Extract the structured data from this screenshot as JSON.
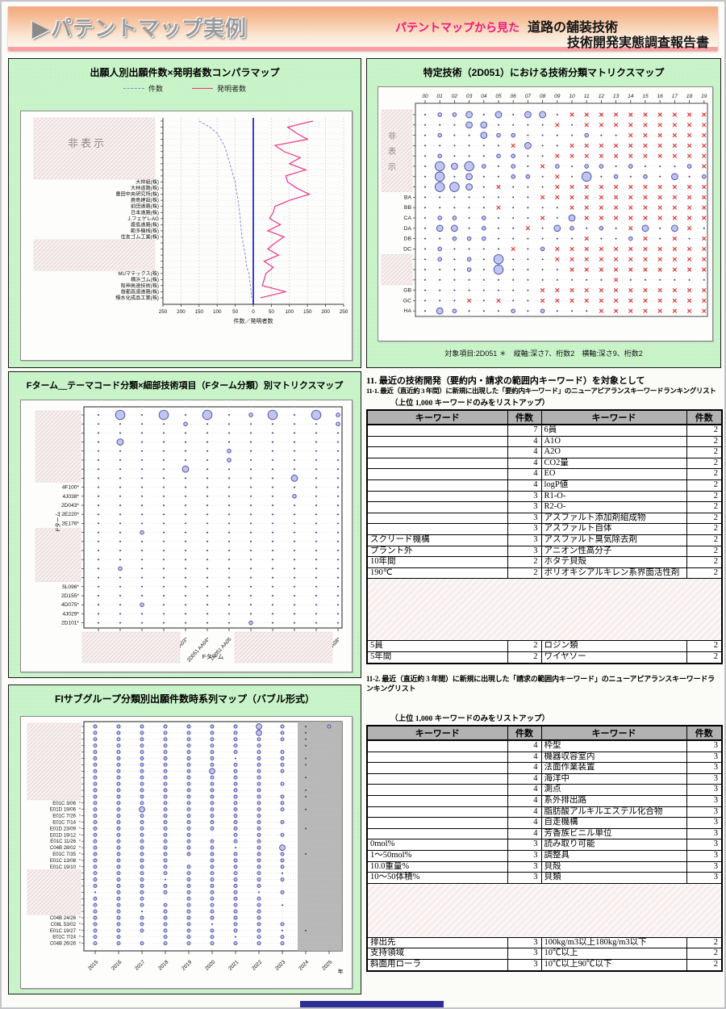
{
  "page": {
    "header": {
      "title": "パテントマップ実例",
      "subtitle_pink": "パテントマップから見た",
      "subtitle_main": "道路の舗装技術",
      "subtitle_sub": "技術開発実態調査報告書"
    },
    "section11": {
      "h1": "11. 最近の技術開発（要約内・請求の範囲内キーワード）を対象として",
      "h11_1": "11-1. 最近（直近約 3 年間）に新規に出現した「要約内キーワード」のニューアピアランスキーワードランキングリスト",
      "listup1": "（上位 1,000 キーワードのみをリストアップ）",
      "h11_2": "11-2. 最近（直近約 3 年間）に新規に出現した「請求の範囲内キーワード」のニューアピアランスキーワードランキングリスト",
      "listup2": "（上位 1,000 キーワードのみをリストアップ）"
    },
    "tables": {
      "headers": [
        "キーワード",
        "件数",
        "キーワード",
        "件数"
      ],
      "table1": {
        "rows": [
          [
            "",
            7,
            "6員",
            2,
            true
          ],
          [
            "",
            4,
            "A1O",
            2,
            true
          ],
          [
            "",
            4,
            "A2O",
            2,
            true
          ],
          [
            "",
            4,
            "CO2量",
            2,
            true
          ],
          [
            "",
            4,
            "EO",
            2,
            true
          ],
          [
            "",
            4,
            "logP値",
            2,
            true
          ],
          [
            "",
            3,
            "R1-O-",
            2,
            true
          ],
          [
            "",
            3,
            "R2-O-",
            2,
            true
          ],
          [
            "",
            3,
            "アスファルト添加剤組成物",
            2,
            true
          ],
          [
            "",
            3,
            "アスファルト自体",
            2,
            true
          ],
          [
            "スクリード機構",
            3,
            "アスファルト臭気除去剤",
            2,
            false
          ],
          [
            "プラント外",
            3,
            "アニオン性高分子",
            2,
            false
          ],
          [
            "10年間",
            2,
            "ホタテ貝殻",
            2,
            false
          ],
          [
            "190℃",
            2,
            "ポリオキシアルキレン系界面活性剤",
            2,
            false
          ],
          {
            "gap": 76
          },
          [
            "5員",
            2,
            "ロジン類",
            2,
            false
          ],
          [
            "5年間",
            2,
            "ワイヤソー",
            2,
            false
          ]
        ]
      },
      "table2": {
        "rows": [
          [
            "",
            4,
            "枠型",
            3,
            true
          ],
          [
            "",
            4,
            "機器収容室内",
            3,
            true
          ],
          [
            "",
            4,
            "法面作業装置",
            3,
            true
          ],
          [
            "",
            4,
            "海洋中",
            3,
            true
          ],
          [
            "",
            4,
            "測点",
            3,
            true
          ],
          [
            "",
            4,
            "系外排出路",
            3,
            true
          ],
          [
            "",
            4,
            "脂肪酸アルキルエステル化合物",
            3,
            true
          ],
          [
            "",
            4,
            "自走機構",
            3,
            true
          ],
          [
            "",
            4,
            "芳香族ビニル単位",
            3,
            true
          ],
          [
            "0mol%",
            3,
            "読み取り可能",
            3,
            false
          ],
          [
            "1～50mol%",
            3,
            "調整具",
            3,
            false
          ],
          [
            "10.0重量%",
            3,
            "貝殻",
            3,
            false
          ],
          [
            "10～50体積%",
            3,
            "貝類",
            3,
            false
          ],
          {
            "gap": 66
          },
          [
            "排出先",
            3,
            "100kg/m3以上180kg/m3以下",
            2,
            false
          ],
          [
            "支持領域",
            3,
            "10℃以上",
            2,
            false
          ],
          [
            "斜面用ローラ",
            3,
            "10℃以上90℃以下",
            2,
            false
          ]
        ]
      }
    }
  },
  "colors": {
    "panel_green": "#c9f4c9",
    "header_peach": "#f2a87c",
    "pink_accent": "#ee1879",
    "series_kensu": "#8888dd",
    "series_hatsumeisha": "#ee3388",
    "bubble_fill": "#b4bcf0",
    "bubble_stroke": "#4646a0",
    "red_x": "#e03030",
    "shade_band": "#b2b2b2"
  },
  "chart_data": [
    {
      "type": "line",
      "title": "出願人別出願件数×発明者数コンパラマップ",
      "xlabel": "件数／発明者数",
      "x_ticks": [
        250,
        200,
        150,
        100,
        50,
        0,
        50,
        100,
        150,
        200,
        250
      ],
      "hidden_label": "非表示",
      "hidden_blocks": [
        [
          0,
          9
        ],
        [
          20,
          24
        ]
      ],
      "categories": [
        "",
        "",
        "",
        "",
        "",
        "",
        "",
        "",
        "",
        "",
        "大林組(株)",
        "大林道路(株)",
        "豊田中央研究所(株)",
        "鹿島建設(株)",
        "前田道路(株)",
        "日本道路(株)",
        "J.フェゲレAG",
        "鹿島道路(株)",
        "範多機械(株)",
        "住友ゴム工業(株)",
        "",
        "",
        "",
        "",
        "",
        "MUマテックス(株)",
        "横浜ゴム(株)",
        "阪神高速技術(株)",
        "首都高速道路(株)",
        "積水化成品工業(株)"
      ],
      "series": [
        {
          "name": "件数",
          "color": "#8888dd",
          "values": [
            150,
            120,
            100,
            90,
            80,
            75,
            70,
            65,
            60,
            55,
            50,
            48,
            45,
            42,
            40,
            38,
            36,
            35,
            33,
            32,
            28,
            25,
            22,
            20,
            18,
            12,
            10,
            8,
            6,
            5
          ]
        },
        {
          "name": "発明者数",
          "color": "#ee3388",
          "values": [
            165,
            95,
            120,
            150,
            60,
            85,
            130,
            100,
            145,
            90,
            95,
            120,
            155,
            100,
            60,
            55,
            45,
            75,
            40,
            85,
            60,
            40,
            70,
            30,
            55,
            35,
            30,
            25,
            90,
            20
          ]
        }
      ]
    },
    {
      "type": "scatter",
      "title": "特定技術（2D051）における技術分類マトリクスマップ",
      "caption": "対象項目:2D051 ＊　縦軸:深さ7、桁数2　横軸:深さ9、桁数2",
      "hidden_label": "非表示",
      "col_labels": [
        "00",
        "01",
        "02",
        "03",
        "04",
        "05",
        "06",
        "07",
        "08",
        "09",
        "10",
        "11",
        "12",
        "13",
        "14",
        "15",
        "16",
        "17",
        "18",
        "19"
      ],
      "row_labels": [
        "",
        "",
        "",
        "",
        "",
        "",
        "",
        "",
        "BA",
        "BB",
        "CA",
        "DA",
        "DB",
        "DC",
        "",
        "",
        "",
        "GB",
        "GC",
        "HA"
      ],
      "hidden_row_blocks": [
        [
          0,
          7
        ],
        [
          14,
          16
        ]
      ],
      "cells": [
        ".112.2.22.xxxxxxxxxx",
        "...22....x.xxxxxxxxx",
        ".1..211....1..xxxxxx",
        "......x2..xxxxxxxxxx",
        ".1...11..xxxxxxxxxxx",
        ".3231.1.x1.11.1...1x",
        ".3.2..11.x.3.1.1.2.1",
        ".332.x...xxxxxxxxxxx",
        "........xxxxxxxxxxxx",
        ".....x....xxxxxxxxxx",
        ".11.1...x.2xxxxxxxxx",
        ".22.1..x.21.1.x2.2x.",
        "..111......x..1x.x.x",
        ".1....x.1xxxxxxxxxxx",
        ".1.1.3...xxxxxxxxxxx",
        "...1.3....xxxxxxxxxx",
        ".............x......",
        "........xxxxxxxxxxxx",
        "...x.x..xxxxxxxxxxxx",
        ".21...1.1...xxxxxxxx"
      ]
    },
    {
      "type": "scatter",
      "title": "Fターム＿テーマコード分類×細部技術項目（Fターム分類）別マトリクスマップ",
      "xlabel": "Fターム",
      "ylabel": "Fターム",
      "col_labels": [
        "",
        "",
        "",
        "",
        "2D051 AA03*",
        "2D051 AA04*",
        "2D051 AA05",
        "",
        "",
        "",
        "",
        "2D051 AA08*"
      ],
      "row_labels": [
        "",
        "",
        "",
        "",
        "",
        "",
        "",
        "",
        "4F100*",
        "4J038*",
        "2D043*",
        "2E220*",
        "2E176*",
        "",
        "",
        "",
        "",
        "",
        "",
        "5L096*",
        "2D155*",
        "4D075*",
        "4J029*",
        "2D101*"
      ],
      "hidden_row_blocks": [
        [
          0,
          7
        ],
        [
          13,
          18
        ]
      ],
      "hidden_col_blocks": [
        [
          0,
          3
        ],
        [
          7,
          10
        ]
      ],
      "cells": [
        ".3.3.3.13.31",
        "....1......1",
        "............",
        ".2..........",
        "......1.....",
        "......1.....",
        "....2.......",
        ".........2..",
        "............",
        ".........1..",
        "............",
        "............",
        "............",
        "..1.........",
        "............",
        "............",
        "............",
        ".1..........",
        "............",
        "............",
        "............",
        "..1.........",
        "............",
        ".......1...."
      ]
    },
    {
      "type": "scatter",
      "title": "FIサブグループ分類別出願件数時系列マップ（バブル形式）",
      "xlabel": "年",
      "col_labels": [
        "2015",
        "2016",
        "2017",
        "2018",
        "2019",
        "2020",
        "2021",
        "2022",
        "2023",
        "2024",
        "2025"
      ],
      "row_labels": [
        "",
        "",
        "",
        "",
        "",
        "",
        "",
        "",
        "",
        "",
        "",
        "",
        "E01C 3/06",
        "E01D 19/06",
        "E01C 7/26",
        "E01C 7/14",
        "E01D 23/09",
        "E01D 19/12",
        "E01C 11/26",
        "C04B 28/02",
        "E01C 7/35",
        "E01C 13/08",
        "E01C 19/10",
        "",
        "",
        "",
        "",
        "",
        "",
        "",
        "C04B 24/26",
        "C08L 53/02",
        "E01C 19/27",
        "E01C 7/24",
        "C04B 26/26"
      ],
      "hidden_row_blocks": [
        [
          0,
          11
        ],
        [
          23,
          29
        ]
      ],
      "shaded_cols": [
        9,
        10
      ],
      "cells": [
        "oooooooOo.o",
        "oooooooOo.-",
        "ooooooooo.-",
        "oooooooo-.-",
        "ooooooooo--",
        "oooooo.oo.-",
        "ooooooooo.-",
        "oooooOooo--",
        "oooooooo-.-",
        "ooooooooo--",
        "oooooooo-.-",
        "ooooooooo.-",
        "ooooooooo--",
        "ooOoooooo.-",
        "oooooooo---",
        "ooooooooo--",
        "oooooooo-.-",
        "ooooo-ooo--",
        "oooooooo---",
        "oooooo.oO--",
        "ooooooooo.-",
        "oooo-oooo--",
        "ooooooooo--",
        "oooooooo.--",
        "ooo.ooooo--",
        "oooooooo---",
        ".oooooo.o--",
        "ooo-oooo---",
        "oooooooo.--",
        "oo.ooooo---",
        "oooooooo---",
        "ooooo.ooo--",
        "oooooooo..-",
        "oo-ooo.oo--",
        "ooooooooo--"
      ]
    }
  ]
}
